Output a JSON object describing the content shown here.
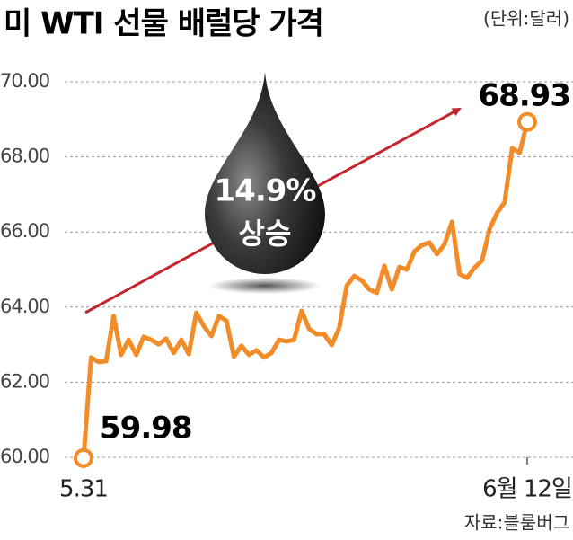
{
  "chart_data": {
    "type": "line",
    "title": "미 WTI 선물 배럴당 가격",
    "unit": "(단위:달러)",
    "source": "자료:블룸버그",
    "annotations": [
      "14.9%",
      "상승"
    ],
    "categories": [
      "5.31",
      null,
      null,
      null,
      null,
      null,
      null,
      null,
      null,
      null,
      null,
      null,
      null,
      null,
      null,
      null,
      null,
      null,
      null,
      null,
      null,
      null,
      null,
      null,
      null,
      null,
      null,
      null,
      null,
      null,
      null,
      null,
      null,
      null,
      null,
      null,
      null,
      null,
      null,
      null,
      null,
      null,
      null,
      null,
      null,
      null,
      null,
      null,
      null,
      null,
      null,
      null,
      null,
      null,
      null,
      null,
      null,
      null,
      null,
      "6월 12일"
    ],
    "series": [
      {
        "name": "WTI",
        "color": "#f28c28",
        "values": [
          59.98,
          62.66,
          62.54,
          62.56,
          63.76,
          62.73,
          63.13,
          62.73,
          63.21,
          63.13,
          63.01,
          63.16,
          62.78,
          63.13,
          62.75,
          63.85,
          63.49,
          63.23,
          63.76,
          63.64,
          62.68,
          62.97,
          62.73,
          62.85,
          62.66,
          62.78,
          63.13,
          63.09,
          63.13,
          63.9,
          63.42,
          63.28,
          63.28,
          62.99,
          63.44,
          64.57,
          64.83,
          64.71,
          64.47,
          64.38,
          65.1,
          64.47,
          65.07,
          65.0,
          65.48,
          65.65,
          65.72,
          65.41,
          65.67,
          66.27,
          64.88,
          64.78,
          65.05,
          65.24,
          66.08,
          66.51,
          66.79,
          68.23,
          68.11,
          68.93
        ],
        "value_labels": [
          "59.98",
          null,
          null,
          null,
          null,
          null,
          null,
          null,
          null,
          null,
          null,
          null,
          null,
          null,
          null,
          null,
          null,
          null,
          null,
          null,
          null,
          null,
          null,
          null,
          null,
          null,
          null,
          null,
          null,
          null,
          null,
          null,
          null,
          null,
          null,
          null,
          null,
          null,
          null,
          null,
          null,
          null,
          null,
          null,
          null,
          null,
          null,
          null,
          null,
          null,
          null,
          null,
          null,
          null,
          null,
          null,
          null,
          null,
          null,
          "68.93"
        ]
      }
    ],
    "ylim": [
      60,
      70
    ],
    "yticks": [
      {
        "value": 60,
        "label": "60.00"
      },
      {
        "value": 62,
        "label": "62.00"
      },
      {
        "value": 64,
        "label": "64.00"
      },
      {
        "value": 66,
        "label": "66.00"
      },
      {
        "value": 68,
        "label": "68.00"
      },
      {
        "value": 70,
        "label": "70.00"
      }
    ],
    "grid": true
  }
}
